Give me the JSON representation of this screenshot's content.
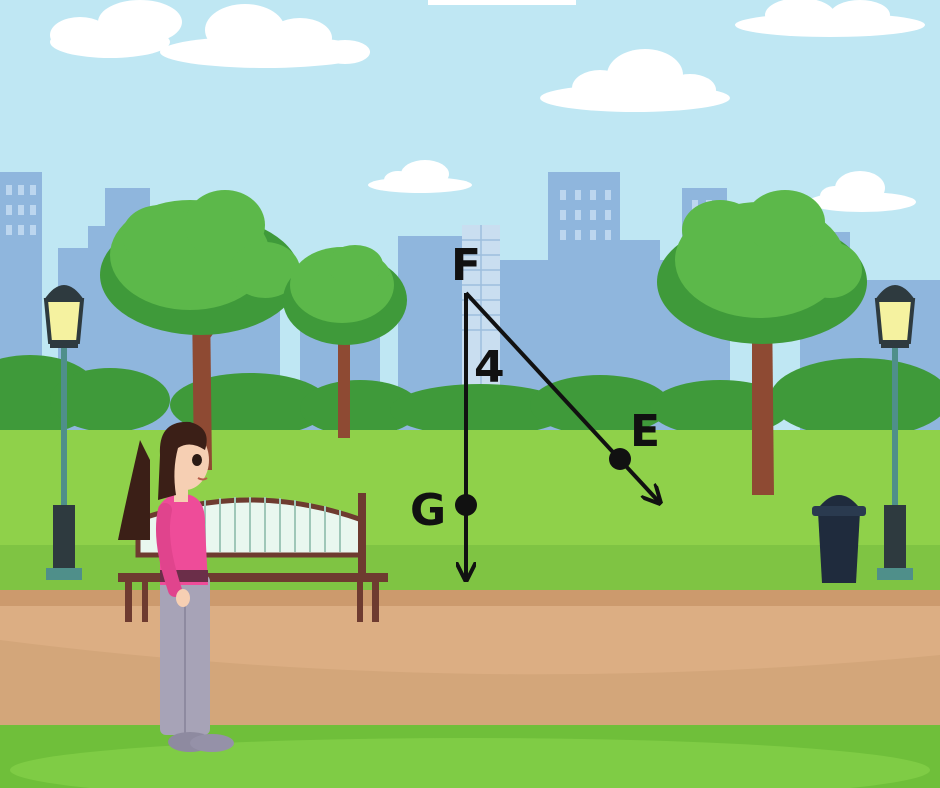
{
  "diagram": {
    "vertex": "F",
    "point_on_ray_1": "G",
    "point_on_ray_2": "E",
    "angle_label": "4"
  },
  "colors": {
    "sky": "#bfe7f3",
    "buildings": "#8fb6dd",
    "grass": "#8fd14a",
    "path": "#dcae83",
    "tree_leaves": "#4aa63a",
    "trunk": "#8e4a33",
    "ink": "#111111",
    "shirt": "#ee4c99"
  },
  "icons": [
    "cloud-icon",
    "lamp-post-icon",
    "park-bench-icon",
    "trash-can-icon",
    "tree-icon",
    "girl-figure-icon"
  ]
}
